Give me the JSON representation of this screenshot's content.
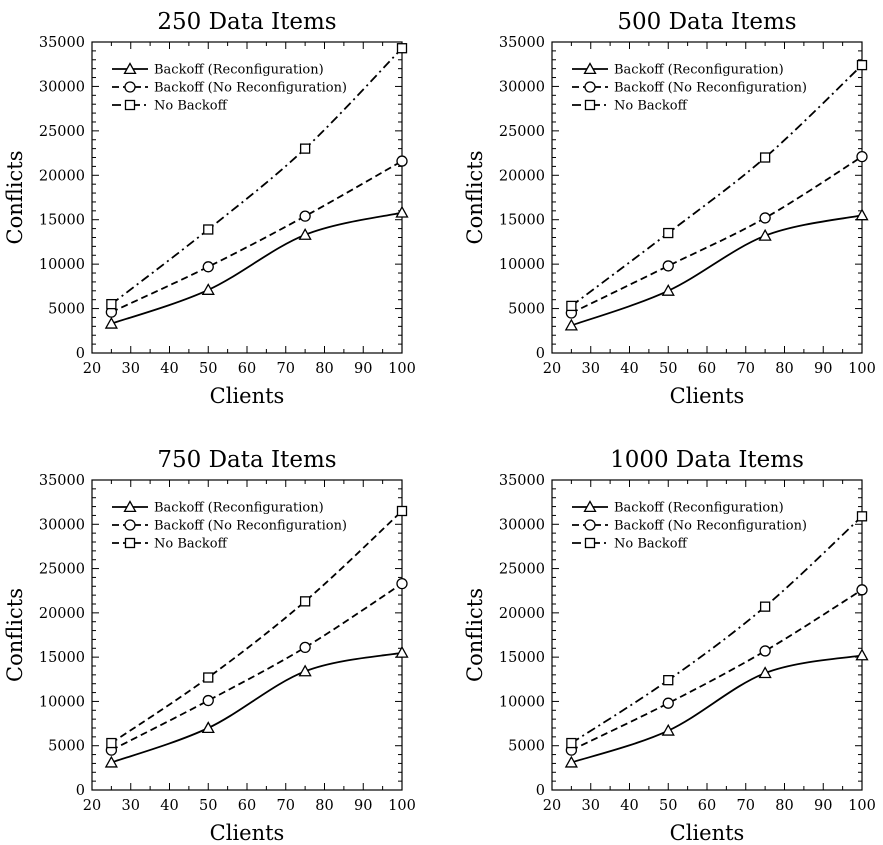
{
  "chart_data": [
    {
      "type": "line",
      "title": "250 Data Items",
      "xlabel": "Clients",
      "ylabel": "Conflicts",
      "xlim": [
        20,
        100
      ],
      "ylim": [
        0,
        35000
      ],
      "xticks": [
        20,
        30,
        40,
        50,
        60,
        70,
        80,
        90,
        100
      ],
      "yticks": [
        0,
        5000,
        10000,
        15000,
        20000,
        25000,
        30000,
        35000
      ],
      "legend_position": "top-left",
      "x": [
        25,
        50,
        75,
        100
      ],
      "series": [
        {
          "name": "Backoff (Reconfiguration)",
          "marker": "triangle",
          "line": "solid",
          "values": [
            3300,
            7100,
            13300,
            15800
          ]
        },
        {
          "name": "Backoff (No Reconfiguration)",
          "marker": "circle",
          "line": "dashed",
          "values": [
            4600,
            9700,
            15400,
            21600
          ]
        },
        {
          "name": "No Backoff",
          "marker": "square",
          "line": "dashdot",
          "values": [
            5500,
            13900,
            23000,
            34300
          ]
        }
      ]
    },
    {
      "type": "line",
      "title": "500 Data Items",
      "xlabel": "Clients",
      "ylabel": "Conflicts",
      "xlim": [
        20,
        100
      ],
      "ylim": [
        0,
        35000
      ],
      "xticks": [
        20,
        30,
        40,
        50,
        60,
        70,
        80,
        90,
        100
      ],
      "yticks": [
        0,
        5000,
        10000,
        15000,
        20000,
        25000,
        30000,
        35000
      ],
      "legend_position": "top-left",
      "x": [
        25,
        50,
        75,
        100
      ],
      "series": [
        {
          "name": "Backoff (Reconfiguration)",
          "marker": "triangle",
          "line": "solid",
          "values": [
            3100,
            7000,
            13200,
            15500
          ]
        },
        {
          "name": "Backoff (No Reconfiguration)",
          "marker": "circle",
          "line": "dashed",
          "values": [
            4500,
            9800,
            15200,
            22100
          ]
        },
        {
          "name": "No Backoff",
          "marker": "square",
          "line": "dashdot",
          "values": [
            5300,
            13500,
            22000,
            32400
          ]
        }
      ]
    },
    {
      "type": "line",
      "title": "750 Data Items",
      "xlabel": "Clients",
      "ylabel": "Conflicts",
      "xlim": [
        20,
        100
      ],
      "ylim": [
        0,
        35000
      ],
      "xticks": [
        20,
        30,
        40,
        50,
        60,
        70,
        80,
        90,
        100
      ],
      "yticks": [
        0,
        5000,
        10000,
        15000,
        20000,
        25000,
        30000,
        35000
      ],
      "legend_position": "top-left",
      "x": [
        25,
        50,
        75,
        100
      ],
      "series": [
        {
          "name": "Backoff (Reconfiguration)",
          "marker": "triangle",
          "line": "solid",
          "values": [
            3100,
            7000,
            13400,
            15500
          ]
        },
        {
          "name": "Backoff (No Reconfiguration)",
          "marker": "circle",
          "line": "dashed",
          "values": [
            4500,
            10100,
            16100,
            23300
          ]
        },
        {
          "name": "No Backoff",
          "marker": "square",
          "line": "dashed",
          "values": [
            5300,
            12700,
            21300,
            31500
          ]
        }
      ]
    },
    {
      "type": "line",
      "title": "1000 Data Items",
      "xlabel": "Clients",
      "ylabel": "Conflicts",
      "xlim": [
        20,
        100
      ],
      "ylim": [
        0,
        35000
      ],
      "xticks": [
        20,
        30,
        40,
        50,
        60,
        70,
        80,
        90,
        100
      ],
      "yticks": [
        0,
        5000,
        10000,
        15000,
        20000,
        25000,
        30000,
        35000
      ],
      "legend_position": "top-left",
      "x": [
        25,
        50,
        75,
        100
      ],
      "series": [
        {
          "name": "Backoff (Reconfiguration)",
          "marker": "triangle",
          "line": "solid",
          "values": [
            3100,
            6700,
            13200,
            15200
          ]
        },
        {
          "name": "Backoff (No Reconfiguration)",
          "marker": "circle",
          "line": "dashed",
          "values": [
            4500,
            9800,
            15700,
            22600
          ]
        },
        {
          "name": "No Backoff",
          "marker": "square",
          "line": "dashdot",
          "values": [
            5300,
            12400,
            20700,
            30900
          ]
        }
      ]
    }
  ]
}
